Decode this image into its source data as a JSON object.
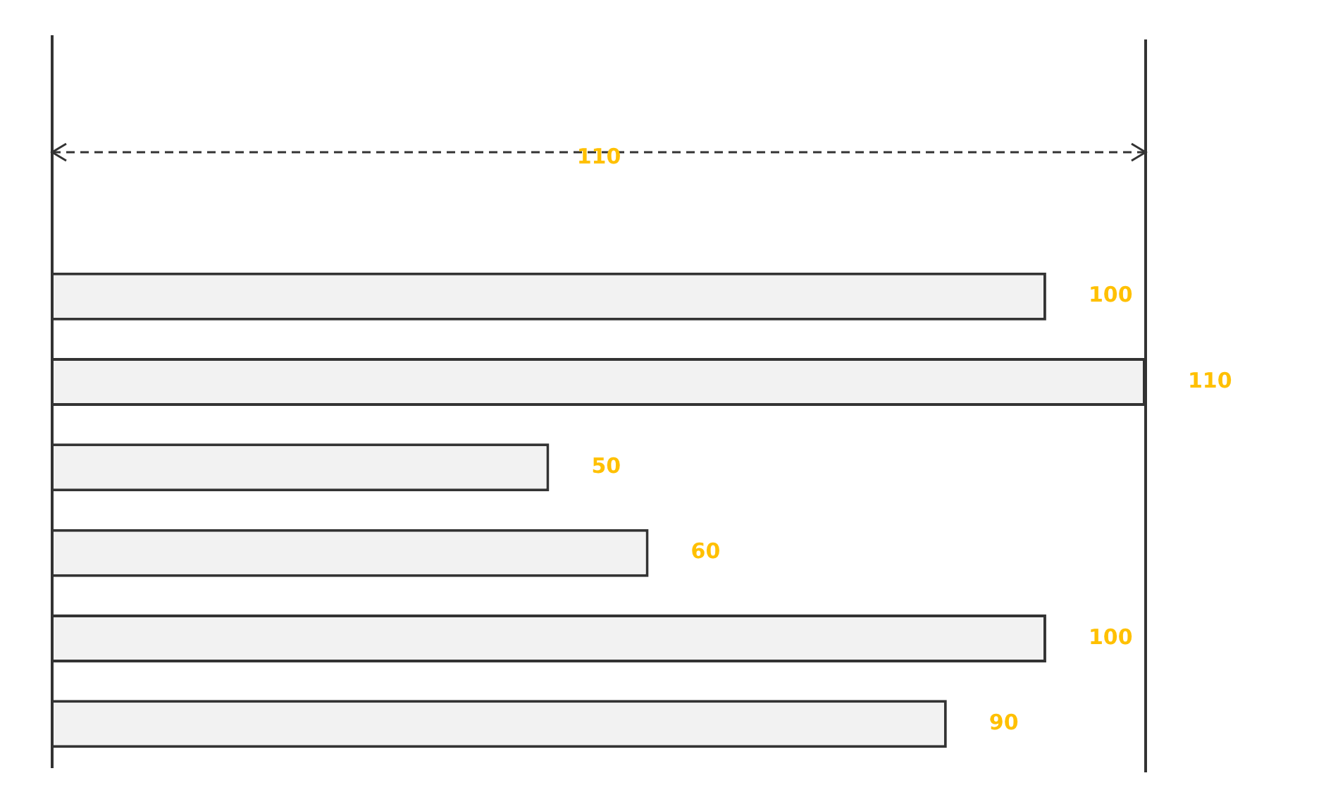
{
  "chart_data": {
    "type": "bar",
    "orientation": "horizontal",
    "categories": [
      null,
      null,
      null,
      null,
      null,
      null
    ],
    "values": [
      100,
      110,
      50,
      60,
      100,
      90
    ],
    "color": "#f2f2f2",
    "xlim": [
      0,
      110
    ],
    "tick_labels": false,
    "grid": false,
    "legend": false,
    "data_labels": true,
    "ref_lines": [
      {
        "axis": "x",
        "value": 110,
        "color": "#333333"
      }
    ],
    "annotations": [
      "110"
    ]
  }
}
